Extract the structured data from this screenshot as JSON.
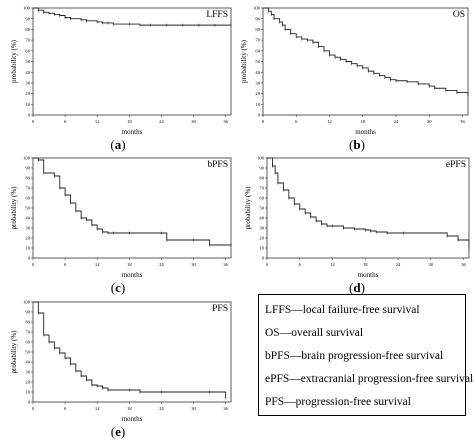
{
  "figure": {
    "captions": [
      "(a)",
      "(b)",
      "(c)",
      "(d)",
      "(e)"
    ],
    "legend": [
      "LFFS—local failure-free survival",
      "OS—overall survival",
      "bPFS—brain progression-free survival",
      "ePFS—extracranial progression-free survival",
      "PFS—progression-free survival"
    ]
  },
  "chart_data": [
    {
      "type": "line",
      "title": "LFFS",
      "xlabel": "months",
      "ylabel": "probability (%)",
      "xlim": [
        0,
        37
      ],
      "ylim": [
        0,
        100
      ],
      "xticks": [
        0,
        6,
        12,
        18,
        24,
        30,
        36
      ],
      "yticks": [
        0,
        10,
        20,
        30,
        40,
        50,
        60,
        70,
        80,
        90,
        100
      ],
      "series": [
        {
          "x": [
            0,
            1,
            2,
            3,
            4,
            5,
            6,
            7,
            9,
            10,
            12,
            13,
            14,
            15,
            18,
            20,
            22,
            25,
            28,
            31,
            34,
            37
          ],
          "y": [
            100,
            98,
            96,
            95,
            94,
            93,
            91,
            90,
            89,
            88,
            87,
            86,
            86,
            85,
            85,
            84,
            84,
            84,
            84,
            84,
            84,
            84
          ]
        }
      ]
    },
    {
      "type": "line",
      "title": "OS",
      "xlabel": "months",
      "ylabel": "probability (%)",
      "xlim": [
        0,
        37
      ],
      "ylim": [
        0,
        100
      ],
      "xticks": [
        0,
        6,
        12,
        18,
        24,
        30,
        36
      ],
      "yticks": [
        0,
        10,
        20,
        30,
        40,
        50,
        60,
        70,
        80,
        90,
        100
      ],
      "series": [
        {
          "x": [
            0,
            1,
            1.5,
            2,
            3,
            3.5,
            4,
            5,
            6,
            7,
            8,
            9,
            10,
            11,
            12,
            13,
            14,
            15,
            16,
            17,
            18,
            19,
            20,
            21,
            22,
            23,
            24,
            26,
            28,
            30,
            31,
            33,
            35,
            37
          ],
          "y": [
            100,
            97,
            94,
            90,
            87,
            84,
            80,
            76,
            73,
            71,
            70,
            68,
            64,
            60,
            56,
            54,
            52,
            50,
            48,
            46,
            44,
            41,
            39,
            37,
            35,
            33,
            32,
            31,
            29,
            27,
            25,
            23,
            21,
            19
          ]
        }
      ]
    },
    {
      "type": "line",
      "title": "bPFS",
      "xlabel": "months",
      "ylabel": "probability (%)",
      "xlim": [
        0,
        37
      ],
      "ylim": [
        0,
        100
      ],
      "xticks": [
        0,
        6,
        12,
        18,
        24,
        30,
        36
      ],
      "yticks": [
        0,
        10,
        20,
        30,
        40,
        50,
        60,
        70,
        80,
        90,
        100
      ],
      "series": [
        {
          "x": [
            0,
            1,
            2,
            4,
            5,
            6,
            7,
            8,
            9,
            10,
            11,
            12,
            13,
            14,
            15,
            18,
            24,
            25,
            30,
            33,
            37
          ],
          "y": [
            100,
            98,
            85,
            82,
            70,
            63,
            55,
            47,
            40,
            38,
            33,
            29,
            26,
            25,
            25,
            25,
            25,
            18,
            18,
            13,
            13
          ]
        }
      ]
    },
    {
      "type": "line",
      "title": "ePFS",
      "xlabel": "months",
      "ylabel": "probability (%)",
      "xlim": [
        0,
        37
      ],
      "ylim": [
        0,
        100
      ],
      "xticks": [
        0,
        6,
        12,
        18,
        24,
        30,
        36
      ],
      "yticks": [
        0,
        10,
        20,
        30,
        40,
        50,
        60,
        70,
        80,
        90,
        100
      ],
      "series": [
        {
          "x": [
            0,
            1,
            1.5,
            2,
            3,
            4,
            5,
            6,
            7,
            8,
            9,
            10,
            11,
            12,
            14,
            16,
            18,
            19,
            20,
            22,
            25,
            33,
            35,
            37
          ],
          "y": [
            100,
            92,
            85,
            75,
            68,
            60,
            54,
            49,
            45,
            41,
            37,
            34,
            32,
            32,
            30,
            29,
            28,
            27,
            26,
            25,
            25,
            22,
            18,
            10
          ]
        }
      ]
    },
    {
      "type": "line",
      "title": "PFS",
      "xlabel": "months",
      "ylabel": "probability (%)",
      "xlim": [
        0,
        37
      ],
      "ylim": [
        0,
        100
      ],
      "xticks": [
        0,
        6,
        12,
        18,
        24,
        30,
        36
      ],
      "yticks": [
        0,
        10,
        20,
        30,
        40,
        50,
        60,
        70,
        80,
        90,
        100
      ],
      "series": [
        {
          "x": [
            0,
            1,
            2,
            3,
            4,
            5,
            6,
            7,
            8,
            9,
            10,
            11,
            12,
            13,
            14,
            18,
            20,
            24,
            33,
            36
          ],
          "y": [
            100,
            89,
            67,
            60,
            54,
            49,
            44,
            38,
            31,
            26,
            22,
            17,
            16,
            14,
            12,
            12,
            10,
            10,
            10,
            4
          ]
        }
      ]
    }
  ]
}
